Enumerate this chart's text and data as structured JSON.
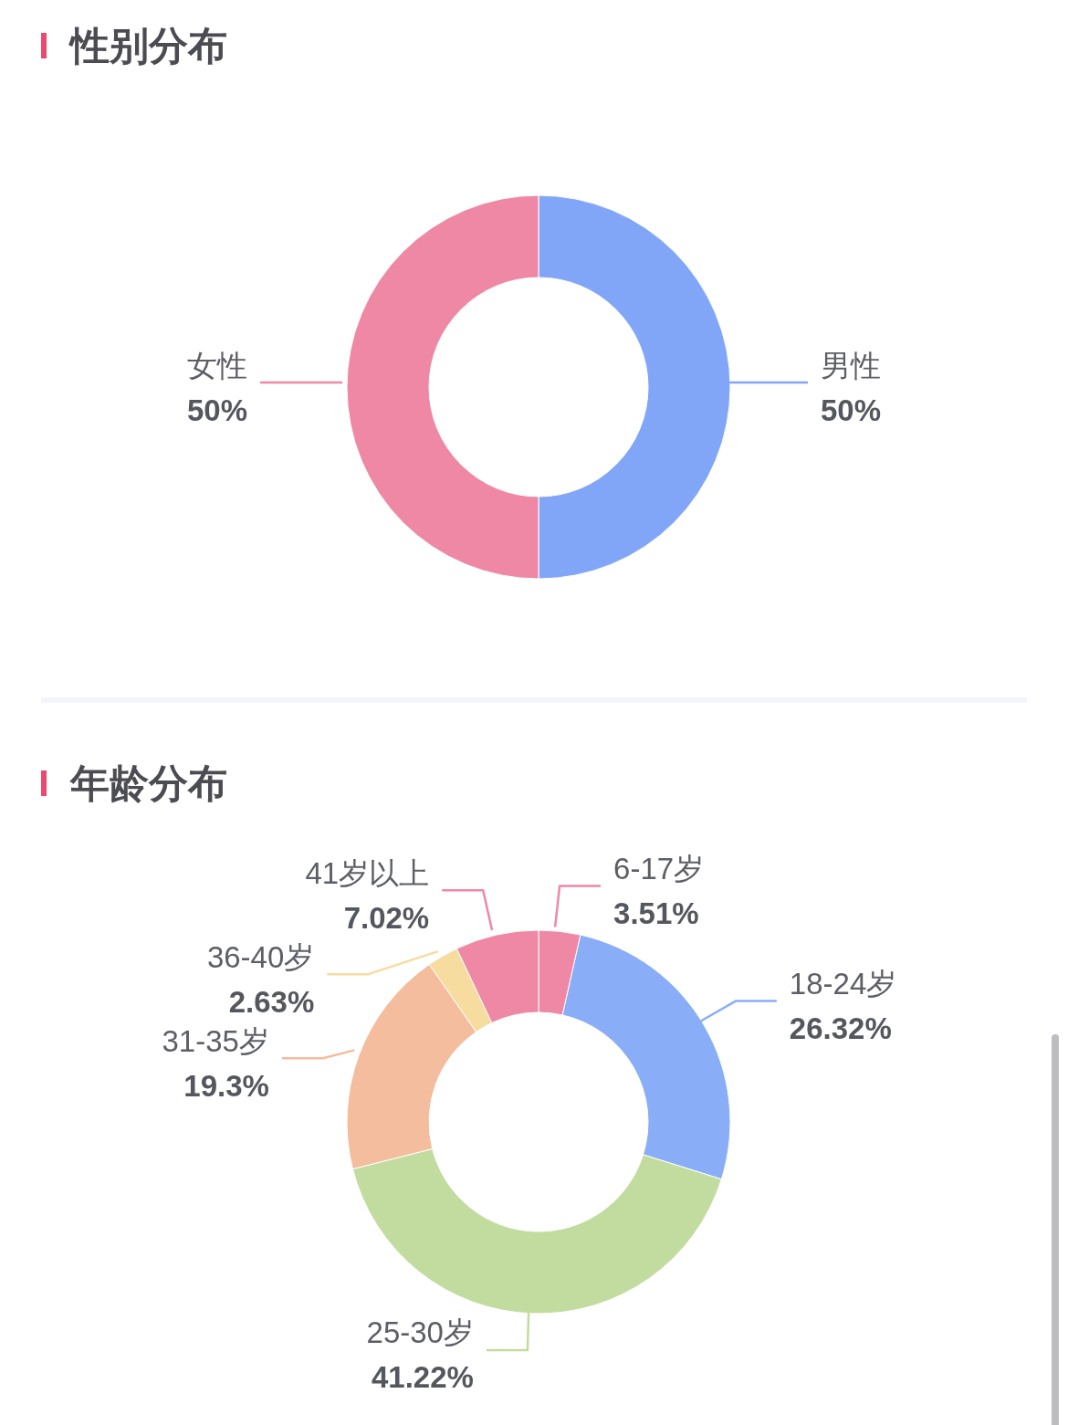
{
  "chart_data": [
    {
      "type": "donut",
      "title": "性别分布",
      "categories": [
        "男性",
        "女性"
      ],
      "values": [
        50,
        50
      ],
      "colors": [
        "#82a6f7",
        "#ee88a5"
      ],
      "value_labels": [
        "50%",
        "50%"
      ]
    },
    {
      "type": "donut",
      "title": "年龄分布",
      "categories": [
        "6-17岁",
        "18-24岁",
        "25-30岁",
        "31-35岁",
        "36-40岁",
        "41岁以上"
      ],
      "values": [
        3.51,
        26.32,
        41.22,
        19.3,
        2.63,
        7.02
      ],
      "colors": [
        "#ee88a5",
        "#8aadf7",
        "#c2dca0",
        "#f3bd9e",
        "#f7dca0",
        "#ee88a5"
      ],
      "value_labels": [
        "3.51%",
        "26.32%",
        "41.22%",
        "19.3%",
        "2.63%",
        "7.02%"
      ]
    }
  ]
}
